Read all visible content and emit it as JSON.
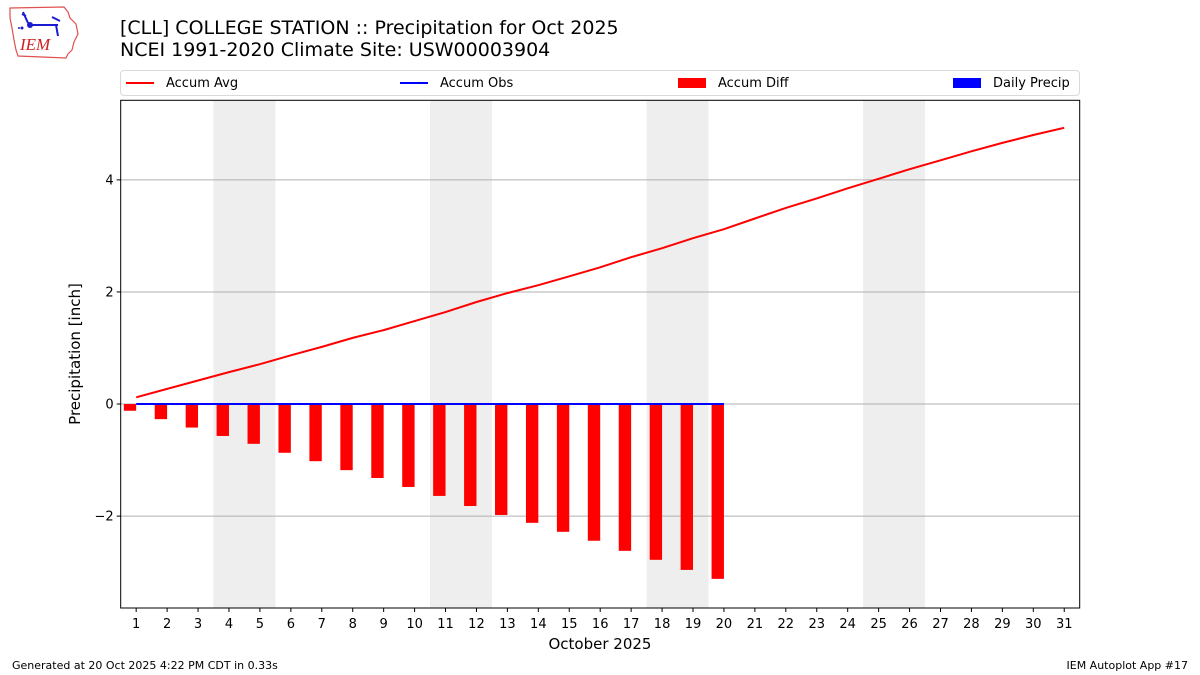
{
  "header": {
    "title_line1": "[CLL] COLLEGE STATION :: Precipitation for Oct 2025",
    "title_line2": "NCEI 1991-2020 Climate Site: USW00003904",
    "logo_text": "IEM"
  },
  "footer": {
    "generated": "Generated at 20 Oct 2025 4:22 PM CDT in 0.33s",
    "app": "IEM Autoplot App #17"
  },
  "colors": {
    "accum_avg": "#ff0000",
    "accum_obs": "#0000ff",
    "accum_diff": "#ff0000",
    "daily_precip": "#0000ff",
    "weekend_band": "#eeeeee",
    "grid": "#b0b0b0"
  },
  "chart_data": {
    "type": "bar",
    "title": "[CLL] COLLEGE STATION :: Precipitation for Oct 2025",
    "subtitle": "NCEI 1991-2020 Climate Site: USW00003904",
    "xlabel": "October 2025",
    "ylabel": "Precipitation [inch]",
    "x": [
      1,
      2,
      3,
      4,
      5,
      6,
      7,
      8,
      9,
      10,
      11,
      12,
      13,
      14,
      15,
      16,
      17,
      18,
      19,
      20,
      21,
      22,
      23,
      24,
      25,
      26,
      27,
      28,
      29,
      30,
      31
    ],
    "xticklabels": [
      "1",
      "2",
      "3",
      "4",
      "5",
      "6",
      "7",
      "8",
      "9",
      "10",
      "11",
      "12",
      "13",
      "14",
      "15",
      "16",
      "17",
      "18",
      "19",
      "20",
      "21",
      "22",
      "23",
      "24",
      "25",
      "26",
      "27",
      "28",
      "29",
      "30",
      "31"
    ],
    "xlim": [
      0.5,
      31.5
    ],
    "ylim": [
      -3.64,
      5.42
    ],
    "yticks": [
      -2,
      0,
      2,
      4
    ],
    "yticklabels": [
      "−2",
      "0",
      "2",
      "4"
    ],
    "grid": "horizontal",
    "legend_placement": "top (above plot, 4 columns)",
    "weekend_bands": [
      [
        3.5,
        5.5
      ],
      [
        10.5,
        12.5
      ],
      [
        17.5,
        19.5
      ],
      [
        24.5,
        26.5
      ]
    ],
    "series": [
      {
        "name": "Accum Avg",
        "kind": "line",
        "color": "#ff0000",
        "x": [
          1,
          2,
          3,
          4,
          5,
          6,
          7,
          8,
          9,
          10,
          11,
          12,
          13,
          14,
          15,
          16,
          17,
          18,
          19,
          20,
          21,
          22,
          23,
          24,
          25,
          26,
          27,
          28,
          29,
          30,
          31
        ],
        "values": [
          0.12,
          0.27,
          0.42,
          0.57,
          0.71,
          0.87,
          1.02,
          1.18,
          1.32,
          1.48,
          1.64,
          1.82,
          1.98,
          2.12,
          2.28,
          2.44,
          2.62,
          2.78,
          2.96,
          3.12,
          3.31,
          3.5,
          3.67,
          3.85,
          4.02,
          4.19,
          4.35,
          4.51,
          4.66,
          4.8,
          4.93
        ]
      },
      {
        "name": "Accum Obs",
        "kind": "line",
        "color": "#0000ff",
        "x": [
          1,
          2,
          3,
          4,
          5,
          6,
          7,
          8,
          9,
          10,
          11,
          12,
          13,
          14,
          15,
          16,
          17,
          18,
          19,
          20
        ],
        "values": [
          0,
          0,
          0,
          0,
          0,
          0,
          0,
          0,
          0,
          0,
          0,
          0,
          0,
          0,
          0,
          0,
          0,
          0,
          0,
          0
        ]
      },
      {
        "name": "Accum Diff",
        "kind": "bar",
        "color": "#ff0000",
        "x": [
          1,
          2,
          3,
          4,
          5,
          6,
          7,
          8,
          9,
          10,
          11,
          12,
          13,
          14,
          15,
          16,
          17,
          18,
          19,
          20
        ],
        "values": [
          -0.12,
          -0.27,
          -0.42,
          -0.57,
          -0.71,
          -0.87,
          -1.02,
          -1.18,
          -1.32,
          -1.48,
          -1.64,
          -1.82,
          -1.98,
          -2.12,
          -2.28,
          -2.44,
          -2.62,
          -2.78,
          -2.96,
          -3.12
        ]
      },
      {
        "name": "Daily Precip",
        "kind": "bar",
        "color": "#0000ff",
        "x": [
          1,
          2,
          3,
          4,
          5,
          6,
          7,
          8,
          9,
          10,
          11,
          12,
          13,
          14,
          15,
          16,
          17,
          18,
          19,
          20
        ],
        "values": [
          0,
          0,
          0,
          0,
          0,
          0,
          0,
          0,
          0,
          0,
          0,
          0,
          0,
          0,
          0,
          0,
          0,
          0,
          0,
          0
        ]
      }
    ]
  }
}
